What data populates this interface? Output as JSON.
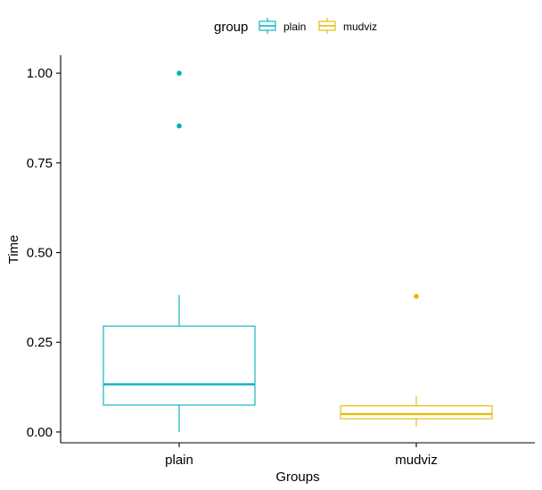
{
  "chart_data": {
    "type": "box",
    "xlabel": "Groups",
    "ylabel": "Time",
    "ylim": [
      -0.03,
      1.05
    ],
    "yticks": [
      "0.00",
      "0.25",
      "0.50",
      "0.75",
      "1.00"
    ],
    "ytick_values": [
      0,
      0.25,
      0.5,
      0.75,
      1.0
    ],
    "categories": [
      "plain",
      "mudviz"
    ],
    "legend": {
      "title": "group",
      "position": "top",
      "items": [
        "plain",
        "mudviz"
      ]
    },
    "series": [
      {
        "name": "plain",
        "color": "#00AFBB",
        "whisker_low": 0.0,
        "q1": 0.075,
        "median": 0.133,
        "q3": 0.295,
        "whisker_high": 0.382,
        "outliers": [
          0.853,
          1.0
        ]
      },
      {
        "name": "mudviz",
        "color": "#E7B800",
        "whisker_low": 0.015,
        "q1": 0.037,
        "median": 0.05,
        "q3": 0.073,
        "whisker_high": 0.1,
        "outliers": [
          0.378
        ]
      }
    ],
    "grid": false
  }
}
